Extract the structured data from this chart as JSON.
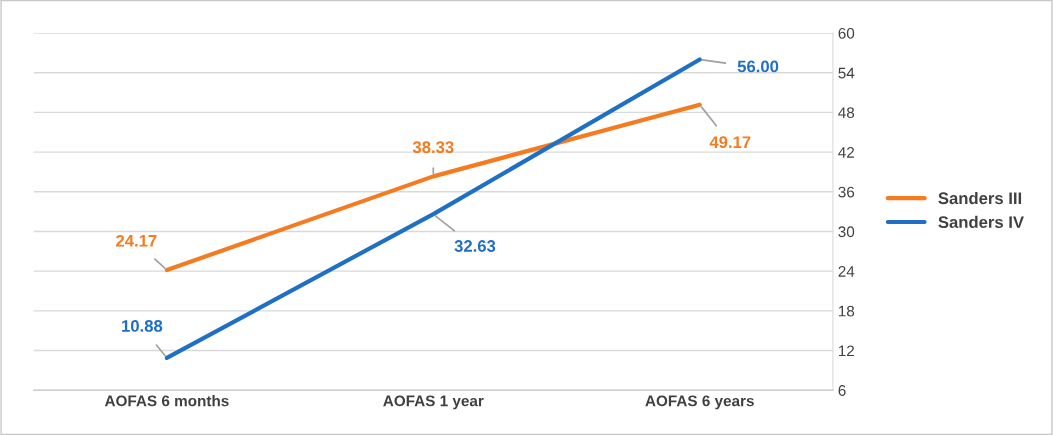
{
  "chart_data": {
    "type": "line",
    "categories": [
      "AOFAS 6 months",
      "AOFAS 1 year",
      "AOFAS 6 years"
    ],
    "series": [
      {
        "name": "Sanders III",
        "color": "#f47b20",
        "values": [
          24.17,
          38.33,
          49.17
        ],
        "value_labels": [
          "24.17",
          "38.33",
          "49.17"
        ]
      },
      {
        "name": "Sanders IV",
        "color": "#1f6fc5",
        "values": [
          10.88,
          32.63,
          56.0
        ],
        "value_labels": [
          "10.88",
          "32.63",
          "56.00"
        ]
      }
    ],
    "ylim": [
      6,
      60
    ],
    "yticks": [
      6,
      12,
      18,
      24,
      30,
      36,
      42,
      48,
      54,
      60
    ],
    "grid": "y",
    "legend": "right",
    "marker": "none",
    "line_style": "solid"
  }
}
